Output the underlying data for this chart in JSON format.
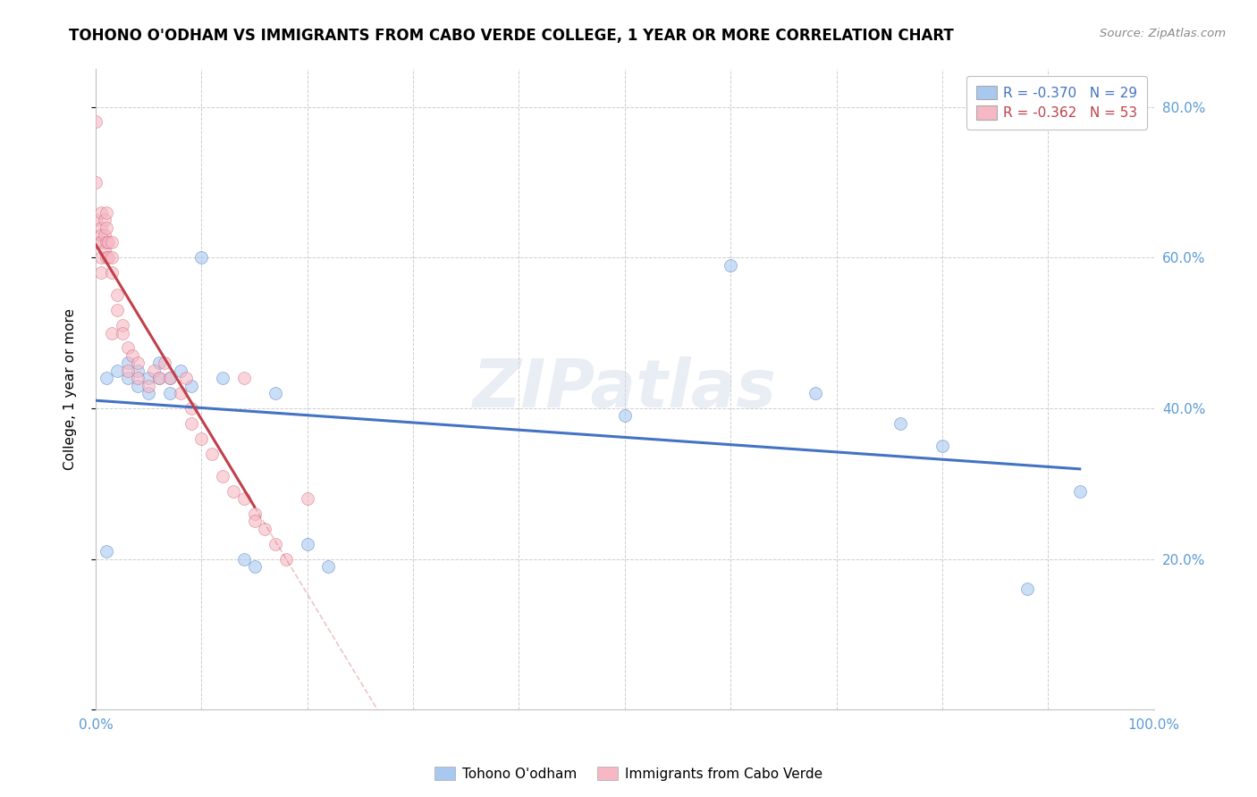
{
  "title": "TOHONO O'ODHAM VS IMMIGRANTS FROM CABO VERDE COLLEGE, 1 YEAR OR MORE CORRELATION CHART",
  "source_text": "Source: ZipAtlas.com",
  "ylabel": "College, 1 year or more",
  "xlim": [
    0,
    1.0
  ],
  "ylim": [
    0,
    0.85
  ],
  "xticks": [
    0.0,
    0.1,
    0.2,
    0.3,
    0.4,
    0.5,
    0.6,
    0.7,
    0.8,
    0.9,
    1.0
  ],
  "yticks": [
    0.0,
    0.2,
    0.4,
    0.6,
    0.8
  ],
  "legend_r1": "R = -0.370",
  "legend_n1": "N = 29",
  "legend_r2": "R = -0.362",
  "legend_n2": "N = 53",
  "blue_color": "#a8c8f0",
  "pink_color": "#f5b8c4",
  "trendline_blue": "#4472c4",
  "trendline_pink": "#c0404a",
  "watermark": "ZIPatlas",
  "blue_scatter_x": [
    0.01,
    0.01,
    0.02,
    0.03,
    0.03,
    0.04,
    0.04,
    0.05,
    0.05,
    0.06,
    0.06,
    0.07,
    0.07,
    0.08,
    0.09,
    0.1,
    0.12,
    0.14,
    0.15,
    0.17,
    0.2,
    0.22,
    0.5,
    0.6,
    0.68,
    0.76,
    0.8,
    0.88,
    0.93
  ],
  "blue_scatter_y": [
    0.21,
    0.44,
    0.45,
    0.44,
    0.46,
    0.43,
    0.45,
    0.42,
    0.44,
    0.44,
    0.46,
    0.42,
    0.44,
    0.45,
    0.43,
    0.6,
    0.44,
    0.2,
    0.19,
    0.42,
    0.22,
    0.19,
    0.39,
    0.59,
    0.42,
    0.38,
    0.35,
    0.16,
    0.29
  ],
  "pink_scatter_x": [
    0.0,
    0.0,
    0.0,
    0.0,
    0.005,
    0.005,
    0.005,
    0.005,
    0.005,
    0.005,
    0.008,
    0.008,
    0.008,
    0.01,
    0.01,
    0.01,
    0.01,
    0.012,
    0.012,
    0.015,
    0.015,
    0.015,
    0.015,
    0.02,
    0.02,
    0.025,
    0.025,
    0.03,
    0.03,
    0.035,
    0.04,
    0.04,
    0.05,
    0.055,
    0.06,
    0.065,
    0.07,
    0.08,
    0.085,
    0.09,
    0.09,
    0.1,
    0.11,
    0.12,
    0.13,
    0.14,
    0.14,
    0.15,
    0.15,
    0.16,
    0.17,
    0.18,
    0.2
  ],
  "pink_scatter_y": [
    0.78,
    0.7,
    0.65,
    0.62,
    0.66,
    0.64,
    0.63,
    0.62,
    0.6,
    0.58,
    0.65,
    0.63,
    0.61,
    0.66,
    0.64,
    0.62,
    0.6,
    0.62,
    0.6,
    0.62,
    0.6,
    0.58,
    0.5,
    0.55,
    0.53,
    0.51,
    0.5,
    0.48,
    0.45,
    0.47,
    0.44,
    0.46,
    0.43,
    0.45,
    0.44,
    0.46,
    0.44,
    0.42,
    0.44,
    0.4,
    0.38,
    0.36,
    0.34,
    0.31,
    0.29,
    0.28,
    0.44,
    0.26,
    0.25,
    0.24,
    0.22,
    0.2,
    0.28
  ]
}
